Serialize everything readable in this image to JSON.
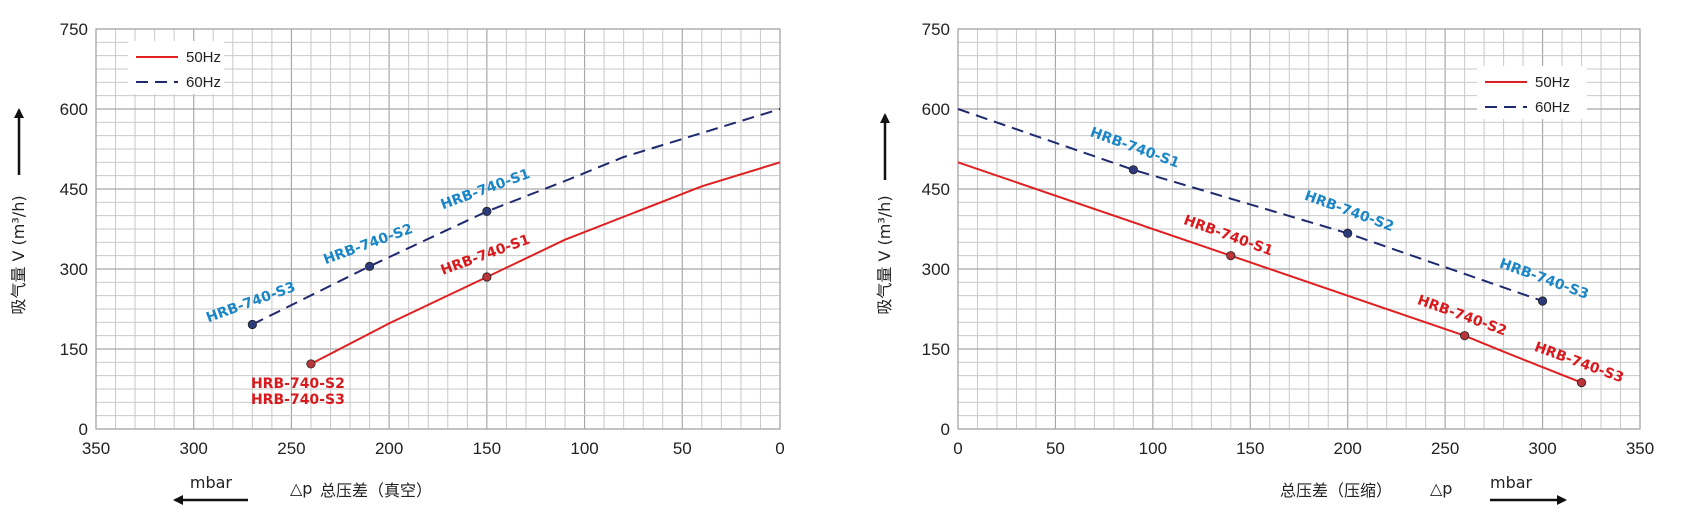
{
  "colors": {
    "s50": "#e02020",
    "s60": "#1f2a6e",
    "label50": "#d9191c",
    "label60": "#1a86c7"
  },
  "chart_data": [
    {
      "type": "line",
      "xlim": [
        350,
        0
      ],
      "ylim": [
        0,
        750
      ],
      "x_reversed": true,
      "xticks": [
        "350",
        "300",
        "250",
        "200",
        "150",
        "100",
        "50",
        "0"
      ],
      "yticks": [
        "0",
        "150",
        "300",
        "450",
        "600",
        "750"
      ],
      "xlabel": "总压差（真空）",
      "xlabel_symbol": "△p",
      "xunit": "mbar",
      "ylabel": "吸气量 V (m³/h)",
      "grid": true,
      "legend_position": "top-left",
      "series": [
        {
          "name": "50Hz",
          "style": "solid",
          "x": [
            240,
            200,
            150,
            110,
            75,
            40,
            0
          ],
          "y": [
            122,
            198,
            285,
            355,
            405,
            455,
            500
          ]
        },
        {
          "name": "60Hz",
          "style": "dashed",
          "x": [
            270,
            210,
            150,
            110,
            80,
            40,
            0
          ],
          "y": [
            196,
            305,
            408,
            465,
            510,
            555,
            600
          ]
        }
      ],
      "points": [
        {
          "series": "60Hz",
          "x": 150,
          "y": 408,
          "labels": [
            "HRB-740-S1"
          ],
          "rotated": true
        },
        {
          "series": "60Hz",
          "x": 210,
          "y": 305,
          "labels": [
            "HRB-740-S2"
          ],
          "rotated": true
        },
        {
          "series": "60Hz",
          "x": 270,
          "y": 196,
          "labels": [
            "HRB-740-S3"
          ],
          "rotated": true
        },
        {
          "series": "50Hz",
          "x": 150,
          "y": 285,
          "labels": [
            "HRB-740-S1"
          ],
          "rotated": true
        },
        {
          "series": "50Hz",
          "x": 240,
          "y": 122,
          "labels": [
            "HRB-740-S2",
            "HRB-740-S3"
          ],
          "rotated": false
        }
      ]
    },
    {
      "type": "line",
      "xlim": [
        0,
        350
      ],
      "ylim": [
        0,
        750
      ],
      "x_reversed": false,
      "xticks": [
        "0",
        "50",
        "100",
        "150",
        "200",
        "250",
        "300",
        "350"
      ],
      "yticks": [
        "0",
        "150",
        "300",
        "450",
        "600",
        "750"
      ],
      "xlabel": "总压差（压缩）",
      "xlabel_symbol": "△p",
      "xunit": "mbar",
      "ylabel": "吸气量 V (m³/h)",
      "grid": true,
      "legend_position": "top-right",
      "series": [
        {
          "name": "50Hz",
          "style": "solid",
          "x": [
            0,
            140,
            260,
            280,
            320
          ],
          "y": [
            500,
            325,
            175,
            145,
            87
          ]
        },
        {
          "name": "60Hz",
          "style": "dashed",
          "x": [
            0,
            90,
            200,
            300
          ],
          "y": [
            600,
            486,
            367,
            240
          ]
        }
      ],
      "points": [
        {
          "series": "60Hz",
          "x": 90,
          "y": 486,
          "labels": [
            "HRB-740-S1"
          ],
          "rotated": true
        },
        {
          "series": "60Hz",
          "x": 200,
          "y": 367,
          "labels": [
            "HRB-740-S2"
          ],
          "rotated": true
        },
        {
          "series": "60Hz",
          "x": 300,
          "y": 240,
          "labels": [
            "HRB-740-S3"
          ],
          "rotated": true
        },
        {
          "series": "50Hz",
          "x": 140,
          "y": 325,
          "labels": [
            "HRB-740-S1"
          ],
          "rotated": true
        },
        {
          "series": "50Hz",
          "x": 260,
          "y": 175,
          "labels": [
            "HRB-740-S2"
          ],
          "rotated": true
        },
        {
          "series": "50Hz",
          "x": 320,
          "y": 87,
          "labels": [
            "HRB-740-S3"
          ],
          "rotated": true
        }
      ]
    }
  ]
}
